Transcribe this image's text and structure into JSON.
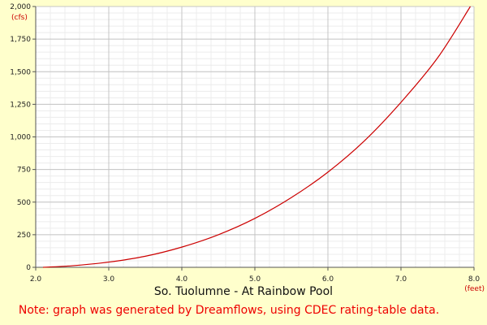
{
  "chart_data": {
    "type": "line",
    "title": "So. Tuolumne - At Rainbow Pool",
    "note": "Note: graph was generated by Dreamflows, using CDEC rating-table data.",
    "xlabel": "",
    "ylabel": "",
    "x_unit": "(feet)",
    "y_unit": "(cfs)",
    "xlim": [
      2.0,
      8.0
    ],
    "ylim": [
      0,
      2000
    ],
    "x_ticks": [
      "2.0",
      "3.0",
      "4.0",
      "5.0",
      "6.0",
      "7.0",
      "8.0"
    ],
    "y_ticks": [
      "0",
      "250",
      "500",
      "750",
      "1,000",
      "1,250",
      "1,500",
      "1,750",
      "2,000"
    ],
    "grid": true,
    "series": [
      {
        "name": "",
        "color": "#cc0000",
        "x": [
          2.1,
          2.5,
          3.0,
          3.5,
          4.0,
          4.5,
          5.0,
          5.5,
          6.0,
          6.5,
          7.0,
          7.5,
          7.95
        ],
        "y": [
          0,
          12,
          40,
          85,
          155,
          250,
          375,
          535,
          730,
          970,
          1265,
          1605,
          2000
        ]
      }
    ]
  }
}
